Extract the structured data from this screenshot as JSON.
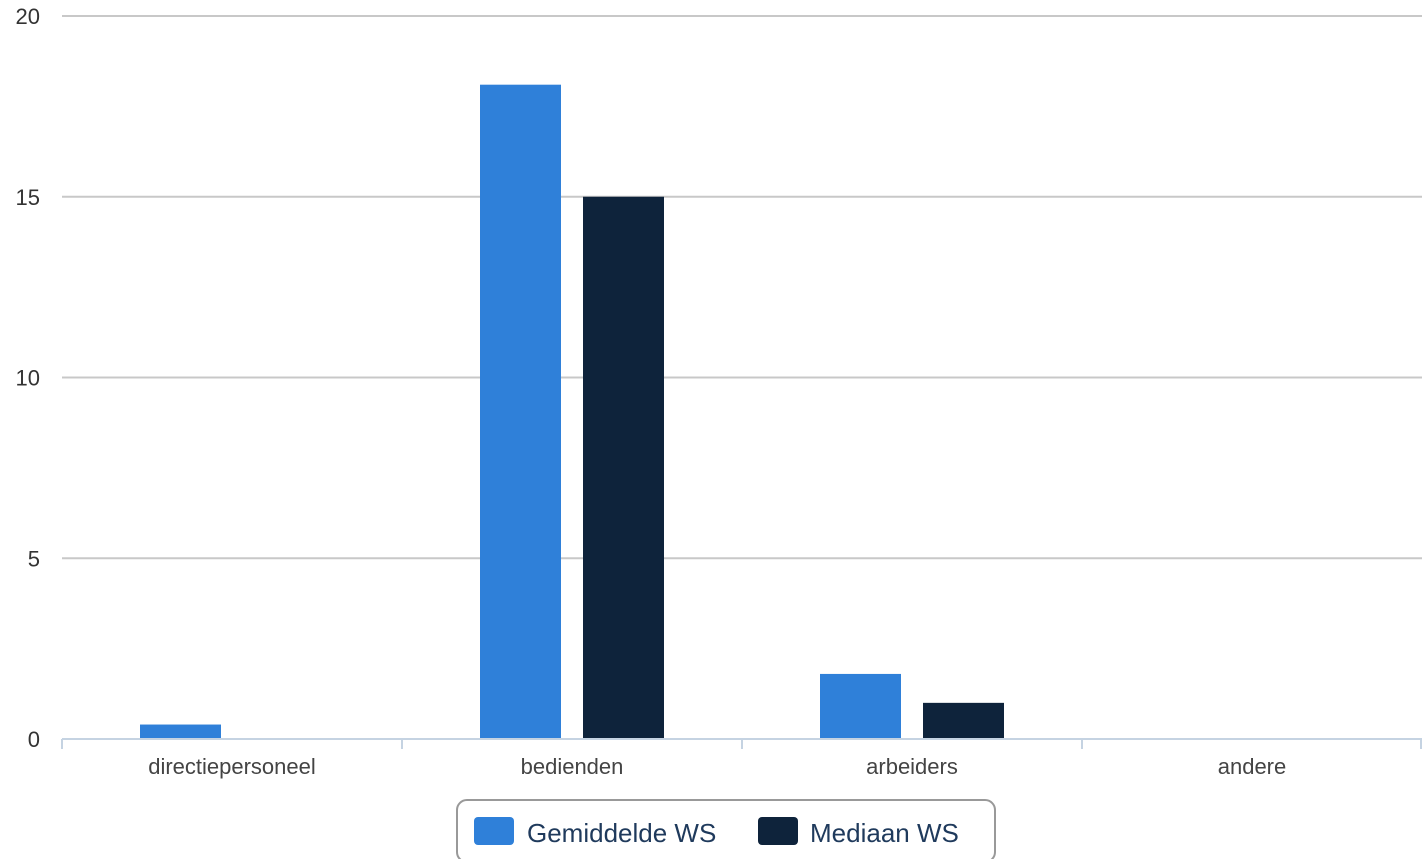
{
  "chart_data": {
    "type": "bar",
    "categories": [
      "directiepersoneel",
      "bedienden",
      "arbeiders",
      "andere"
    ],
    "series": [
      {
        "name": "Gemiddelde WS",
        "values": [
          0.4,
          18.1,
          1.8,
          0
        ],
        "color": "#2f80d9"
      },
      {
        "name": "Mediaan WS",
        "values": [
          0,
          15,
          1,
          0
        ],
        "color": "#0e233b"
      }
    ],
    "ylim": [
      0,
      20
    ],
    "yticks": [
      0,
      5,
      10,
      15,
      20
    ],
    "grid": true,
    "legend_position": "bottom-center",
    "title": "",
    "xlabel": "",
    "ylabel": ""
  }
}
